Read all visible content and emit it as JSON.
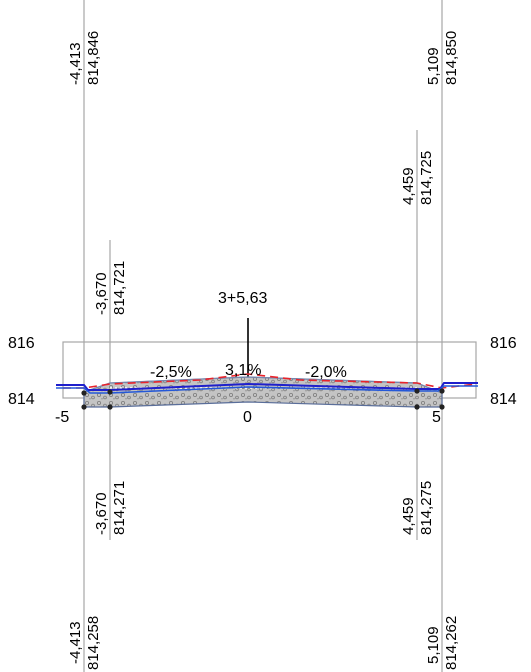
{
  "station_label": "3+5,63",
  "slopes": {
    "left": "-2,5%",
    "center": "3,1%",
    "right": "-2,0%"
  },
  "axis": {
    "y_top_left": "816",
    "y_bottom_left": "814",
    "y_top_right": "816",
    "y_bottom_right": "814",
    "x_ticks": [
      "-5",
      "0",
      "5"
    ]
  },
  "top_labels": {
    "left_outer": {
      "offset": "-4,413",
      "elevation": "814,846"
    },
    "left_inner": {
      "offset": "-3,670",
      "elevation": "814,721"
    },
    "right_inner": {
      "offset": "4,459",
      "elevation": "814,725"
    },
    "right_outer": {
      "offset": "5,109",
      "elevation": "814,850"
    }
  },
  "bottom_labels": {
    "left_inner": {
      "offset": "-3,670",
      "elevation": "814,271"
    },
    "left_outer": {
      "offset": "-4,413",
      "elevation": "814,258"
    },
    "right_inner": {
      "offset": "4,459",
      "elevation": "814,275"
    },
    "right_outer": {
      "offset": "5,109",
      "elevation": "814,262"
    }
  },
  "colors": {
    "frame": "#a6a6a6",
    "design_line": "#1f1fcc",
    "road_surface": "#2458d8",
    "existing_ground": "#e8242c",
    "subbase_fill": "#b8b8b8",
    "subbase_line": "#5a6e9a",
    "point": "#222222"
  }
}
